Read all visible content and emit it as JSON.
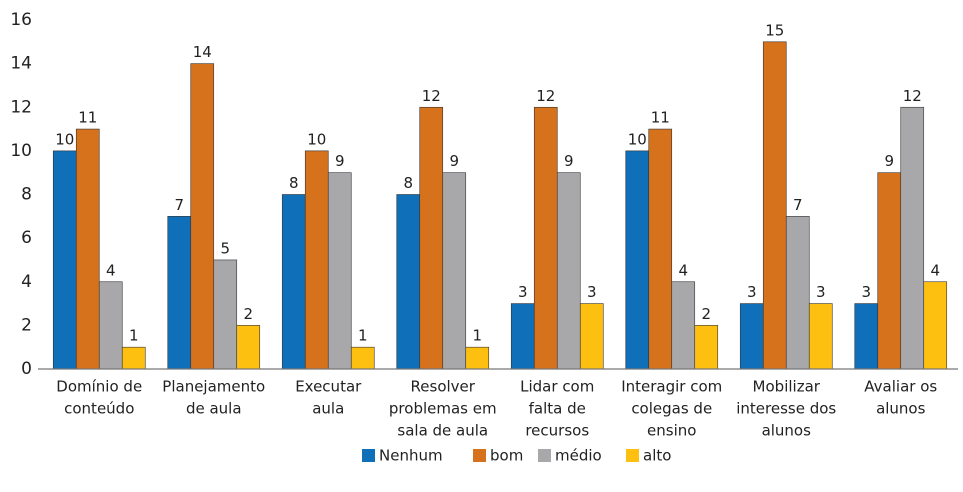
{
  "chart_data": {
    "type": "bar",
    "categories": [
      [
        "Domínio de",
        "conteúdo"
      ],
      [
        "Planejamento",
        "de aula"
      ],
      [
        "Executar",
        "aula"
      ],
      [
        "Resolver",
        "problemas em",
        "sala de aula"
      ],
      [
        "Lidar com",
        "falta de",
        "recursos"
      ],
      [
        "Interagir com",
        "colegas de",
        "ensino"
      ],
      [
        "Mobilizar",
        "interesse dos",
        "alunos"
      ],
      [
        "Avaliar os",
        "alunos"
      ]
    ],
    "series": [
      {
        "name": "Nenhum",
        "color": "#0f6fb8",
        "values": [
          10,
          7,
          8,
          8,
          3,
          10,
          3,
          3
        ]
      },
      {
        "name": "bom",
        "color": "#d6711c",
        "values": [
          11,
          14,
          10,
          12,
          12,
          11,
          15,
          9
        ]
      },
      {
        "name": "médio",
        "color": "#a8a8aa",
        "values": [
          4,
          5,
          9,
          9,
          9,
          4,
          7,
          12
        ]
      },
      {
        "name": "alto",
        "color": "#fdc011",
        "values": [
          1,
          2,
          1,
          1,
          3,
          2,
          3,
          4
        ]
      }
    ],
    "ylim": [
      0,
      16
    ],
    "yticks": [
      0,
      2,
      4,
      6,
      8,
      10,
      12,
      14,
      16
    ],
    "grid": false,
    "legend": "bottom"
  }
}
